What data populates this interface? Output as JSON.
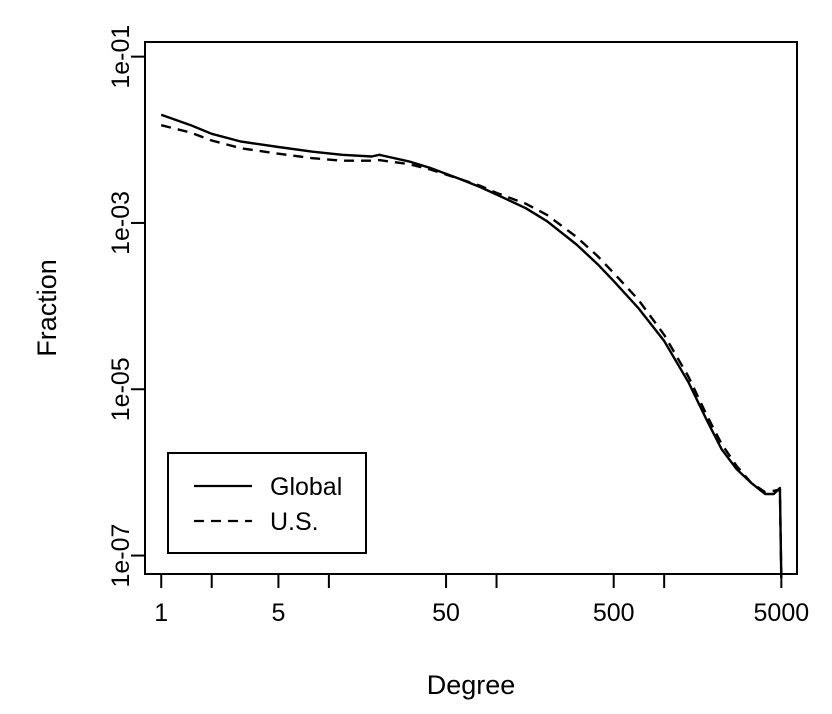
{
  "chart_data": {
    "type": "line",
    "xlabel": "Degree",
    "ylabel": "Fraction",
    "x_scale": "log",
    "y_scale": "log",
    "xlim": [
      0.8,
      6200
    ],
    "ylim": [
      6e-08,
      0.15
    ],
    "x_ticks": [
      1,
      2,
      5,
      10,
      50,
      100,
      500,
      1000,
      5000
    ],
    "x_tick_labels": [
      "1",
      "",
      "5",
      "",
      "50",
      "",
      "500",
      "",
      "5000"
    ],
    "y_ticks": [
      1e-07,
      1e-05,
      0.001,
      0.1
    ],
    "y_tick_labels": [
      "1e-07",
      "1e-05",
      "1e-03",
      "1e-01"
    ],
    "legend_position": "bottom-left",
    "series": [
      {
        "name": "Global",
        "style": "solid",
        "color": "#000000",
        "points": [
          [
            1,
            0.02
          ],
          [
            1.5,
            0.015
          ],
          [
            2,
            0.0118
          ],
          [
            3,
            0.0095
          ],
          [
            5,
            0.0082
          ],
          [
            8,
            0.0072
          ],
          [
            12,
            0.0066
          ],
          [
            18,
            0.0063
          ],
          [
            20,
            0.0066
          ],
          [
            30,
            0.0055
          ],
          [
            40,
            0.0046
          ],
          [
            60,
            0.0034
          ],
          [
            80,
            0.0027
          ],
          [
            100,
            0.0022
          ],
          [
            150,
            0.0015
          ],
          [
            200,
            0.00105
          ],
          [
            300,
            0.00055
          ],
          [
            400,
            0.00032
          ],
          [
            500,
            0.0002
          ],
          [
            700,
            9.5e-05
          ],
          [
            1000,
            3.8e-05
          ],
          [
            1400,
            1.2e-05
          ],
          [
            1800,
            4.2e-06
          ],
          [
            2200,
            1.9e-06
          ],
          [
            2700,
            1.1e-06
          ],
          [
            3300,
            7.5e-07
          ],
          [
            4000,
            5.5e-07
          ],
          [
            4500,
            5.5e-07
          ],
          [
            4900,
            6.5e-07
          ],
          [
            5000,
            1e-08
          ]
        ]
      },
      {
        "name": "U.S.",
        "style": "dashed",
        "color": "#000000",
        "points": [
          [
            1,
            0.015
          ],
          [
            1.5,
            0.0122
          ],
          [
            2,
            0.0098
          ],
          [
            3,
            0.0079
          ],
          [
            5,
            0.0068
          ],
          [
            8,
            0.006
          ],
          [
            12,
            0.0056
          ],
          [
            18,
            0.0056
          ],
          [
            20,
            0.0057
          ],
          [
            30,
            0.0051
          ],
          [
            40,
            0.0044
          ],
          [
            60,
            0.0034
          ],
          [
            80,
            0.0028
          ],
          [
            100,
            0.0023
          ],
          [
            150,
            0.0017
          ],
          [
            200,
            0.00125
          ],
          [
            300,
            0.00068
          ],
          [
            400,
            0.0004
          ],
          [
            500,
            0.00025
          ],
          [
            700,
            0.00012
          ],
          [
            1000,
            4.5e-05
          ],
          [
            1400,
            1.4e-05
          ],
          [
            1800,
            4.8e-06
          ],
          [
            2200,
            2.2e-06
          ],
          [
            2700,
            1.2e-06
          ],
          [
            3300,
            7.5e-07
          ],
          [
            4000,
            5.8e-07
          ],
          [
            4500,
            6e-07
          ],
          [
            4900,
            6.2e-07
          ],
          [
            5000,
            1e-08
          ]
        ]
      }
    ]
  }
}
